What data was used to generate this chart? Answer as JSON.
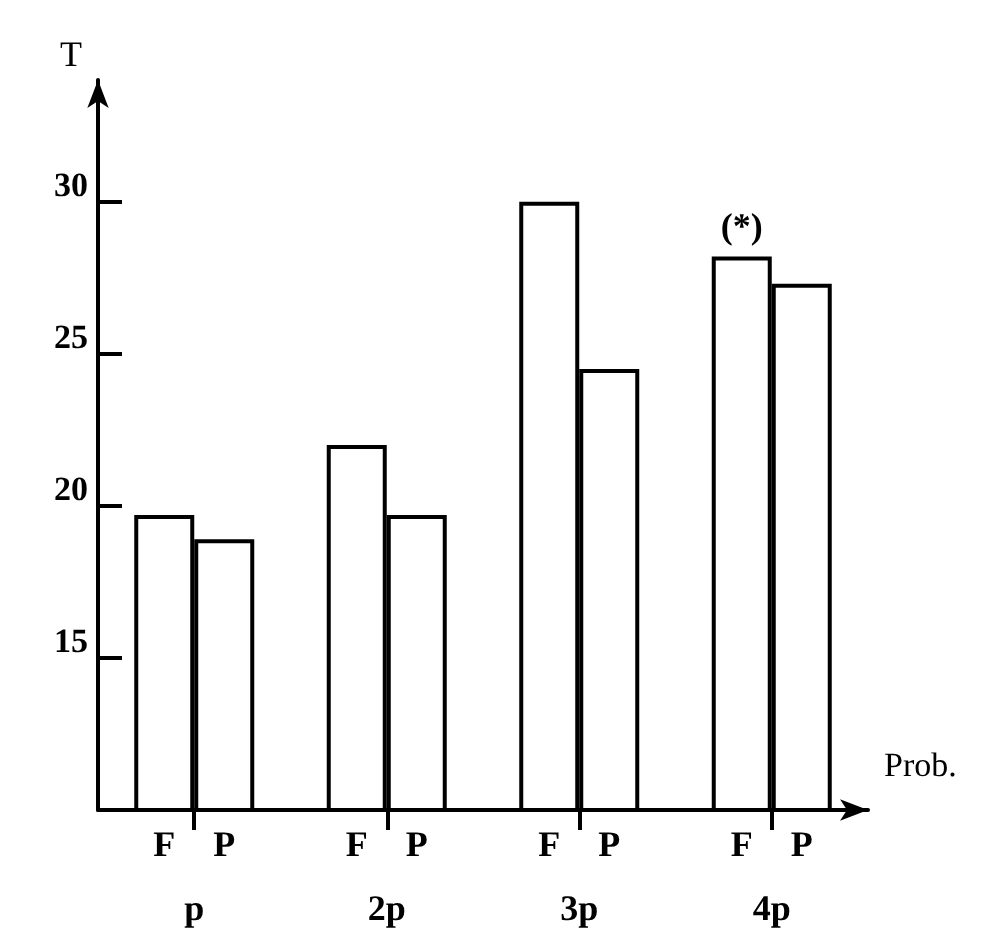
{
  "chart_data": {
    "type": "bar",
    "xlabel": "Prob.",
    "ylabel": "T",
    "categories": [
      "p",
      "2p",
      "3p",
      "4p"
    ],
    "series": [
      {
        "name": "F",
        "color": "#ffffff",
        "values": [
          19.7,
          22.0,
          30.0,
          28.2
        ]
      },
      {
        "name": "P",
        "color": "#ffffff",
        "values": [
          18.9,
          19.7,
          24.5,
          27.3
        ]
      }
    ],
    "ylim": [
      10,
      34
    ],
    "yticks": [
      15,
      20,
      25,
      30
    ],
    "grid": false,
    "legend": false,
    "annotations": [
      {
        "text": "(*)",
        "x": "4p",
        "y": 28.2
      }
    ]
  }
}
